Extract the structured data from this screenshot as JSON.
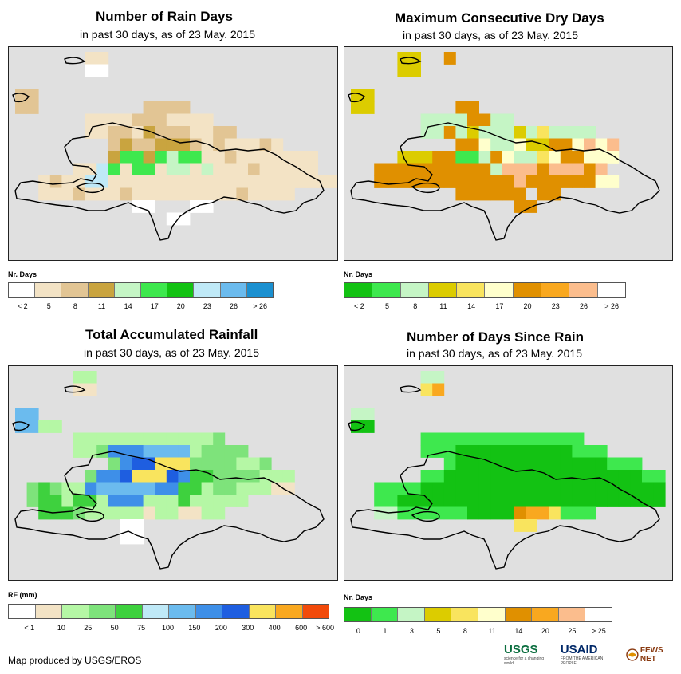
{
  "panels": [
    {
      "id": "rain-days",
      "title": "Number of Rain Days",
      "subtitle": "in past 30 days, as of 23 May. 2015",
      "legend_title": "Nr. Days",
      "legend_colors": [
        "#ffffff",
        "#f3e3c5",
        "#e2c594",
        "#c9a43f",
        "#c5f5c5",
        "#3ee84e",
        "#13c213",
        "#bfe9f7",
        "#6bbbee",
        "#1b90d0"
      ],
      "legend_labels": [
        "< 2",
        "5",
        "8",
        "11",
        "14",
        "17",
        "20",
        "23",
        "26",
        "> 26"
      ],
      "palette_key": "rain"
    },
    {
      "id": "dry-days",
      "title": "Maximum Consecutive Dry Days",
      "subtitle": "in past 30 days, as of 23 May. 2015",
      "legend_title": "Nr. Days",
      "legend_colors": [
        "#13c213",
        "#3ee84e",
        "#c5f5c5",
        "#dccc00",
        "#f9e45e",
        "#ffffcc",
        "#e09000",
        "#f9a81f",
        "#fbbd8d",
        "#ffffff"
      ],
      "legend_labels": [
        "< 2",
        "5",
        "8",
        "11",
        "14",
        "17",
        "20",
        "23",
        "26",
        "> 26"
      ],
      "palette_key": "dry"
    },
    {
      "id": "rainfall",
      "title": "Total Accumulated Rainfall",
      "subtitle": "in past 30 days, as of 23 May. 2015",
      "legend_title": "RF (mm)",
      "legend_colors": [
        "#ffffff",
        "#f3e3c5",
        "#b5f7a5",
        "#7ee37b",
        "#3ed13e",
        "#bfe9f7",
        "#6bbbee",
        "#3e8fe8",
        "#1e5ee0",
        "#f9e45e",
        "#f9a81f",
        "#f24a0a"
      ],
      "legend_labels": [
        "< 1",
        "10",
        "25",
        "50",
        "75",
        "100",
        "150",
        "200",
        "300",
        "400",
        "600",
        "> 600"
      ],
      "palette_key": "rf"
    },
    {
      "id": "since-rain",
      "title": "Number of Days Since Rain",
      "subtitle": "in past 30 days, as of 23 May. 2015",
      "legend_title": "Nr. Days",
      "legend_colors": [
        "#13c213",
        "#3ee84e",
        "#c5f5c5",
        "#dccc00",
        "#f9e45e",
        "#ffffcc",
        "#e09000",
        "#f9a81f",
        "#fbbd8d",
        "#ffffff"
      ],
      "legend_labels": [
        "0",
        "1",
        "3",
        "5",
        "8",
        "11",
        "14",
        "20",
        "25",
        "> 25"
      ],
      "palette_key": "since"
    }
  ],
  "footer": "Map produced by USGS/EROS",
  "logos": {
    "usgs": "USGS",
    "usgs_tag": "science for a changing world",
    "usaid": "USAID",
    "usaid_tag": "FROM THE AMERICAN PEOPLE",
    "fews": "FEWS NET"
  }
}
